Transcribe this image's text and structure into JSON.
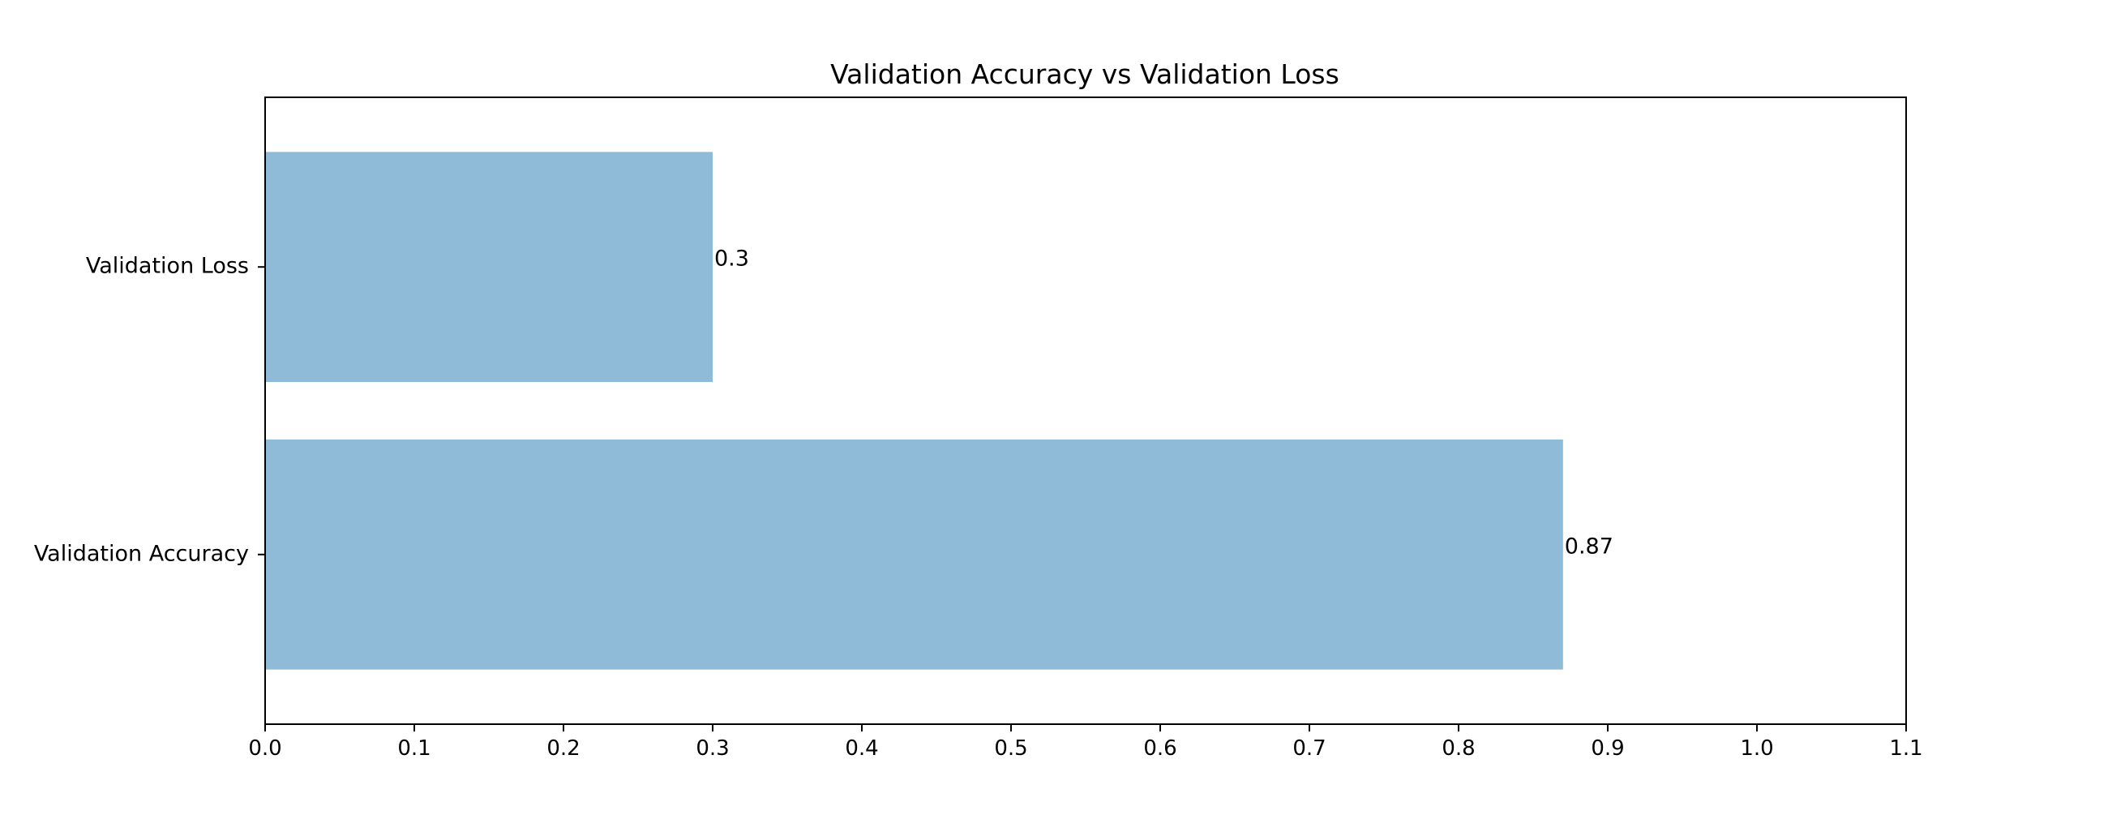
{
  "chart_data": {
    "type": "bar",
    "orientation": "horizontal",
    "title": "Validation Accuracy vs Validation Loss",
    "xlabel": "",
    "ylabel": "",
    "categories": [
      "Validation Accuracy",
      "Validation Loss"
    ],
    "values": [
      0.87,
      0.3
    ],
    "value_labels": [
      "0.87",
      "0.3"
    ],
    "xlim": [
      0,
      1.1
    ],
    "xticks": [
      0.0,
      0.1,
      0.2,
      0.3,
      0.4,
      0.5,
      0.6,
      0.7,
      0.8,
      0.9,
      1.0,
      1.1
    ],
    "xtick_labels": [
      "0.0",
      "0.1",
      "0.2",
      "0.3",
      "0.4",
      "0.5",
      "0.6",
      "0.7",
      "0.8",
      "0.9",
      "1.0",
      "1.1"
    ],
    "grid": false,
    "legend": "none",
    "bar_color": "#8fbad8"
  }
}
